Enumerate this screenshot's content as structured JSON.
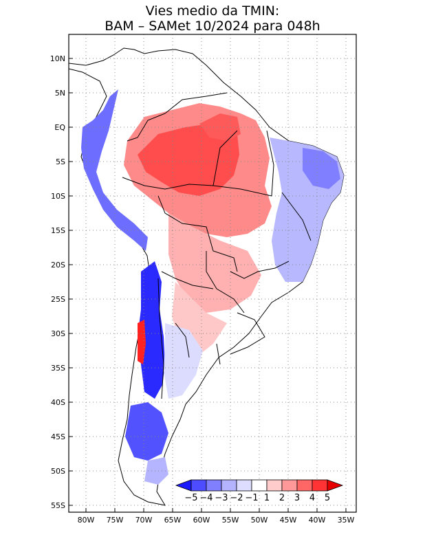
{
  "title": {
    "line1": "Vies medio da TMIN:",
    "line2": "BAM – SAMet 10/2024  para 048h"
  },
  "axes": {
    "lon_ticks": [
      "80W",
      "75W",
      "70W",
      "65W",
      "60W",
      "55W",
      "50W",
      "45W",
      "40W",
      "35W"
    ],
    "lat_ticks": [
      "10N",
      "5N",
      "EQ",
      "5S",
      "10S",
      "15S",
      "20S",
      "25S",
      "30S",
      "35S",
      "40S",
      "45S",
      "50S",
      "55S"
    ]
  },
  "map_data": {
    "type": "shaded-map",
    "region": "South America",
    "lon_range": [
      -83,
      -34
    ],
    "lat_range": [
      13,
      -56
    ],
    "lon_values": [
      -80,
      -75,
      -70,
      -65,
      -60,
      -55,
      -50,
      -45,
      -40,
      -35
    ],
    "lat_values": [
      10,
      5,
      0,
      -5,
      -10,
      -15,
      -20,
      -25,
      -30,
      -35,
      -40,
      -45,
      -50,
      -55
    ],
    "grid": "dotted"
  },
  "colorbar": {
    "labels": [
      "−5",
      "−4",
      "−3",
      "−2",
      "−1",
      "1",
      "2",
      "3",
      "4",
      "5"
    ],
    "colors": [
      "#1a1aff",
      "#4d4dff",
      "#8080ff",
      "#b3b3ff",
      "#ddddff",
      "#ffffff",
      "#ffcccc",
      "#ff9999",
      "#ff6666",
      "#ff3333",
      "#e60000"
    ]
  },
  "palette": {
    "blue_strong": "#1a1aff",
    "blue_mid": "#6666ff",
    "blue_light": "#c8c8ff",
    "red_light": "#ffbdbd",
    "red_mid": "#ff8080",
    "red_strong": "#ff3b3b",
    "red_dark": "#e60000"
  }
}
